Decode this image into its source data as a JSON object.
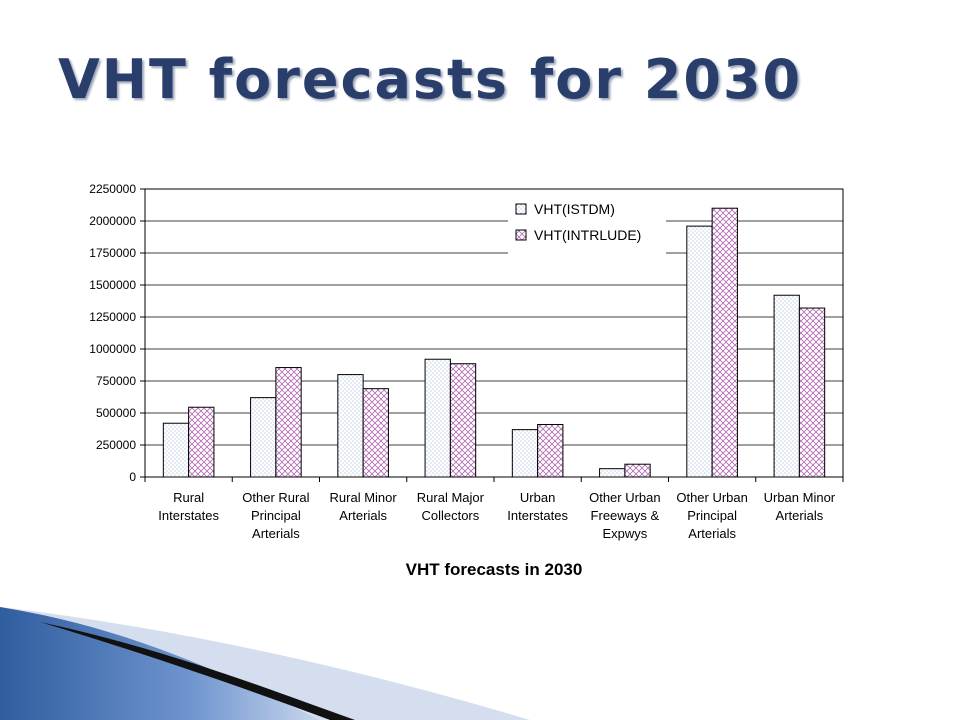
{
  "slide": {
    "title": "VHT forecasts for 2030"
  },
  "colors": {
    "title": "#2a3e6b",
    "bar_fill": "#ffffff",
    "istdm_pattern": "#7f9fcc",
    "intrlude_pattern": "#b06bb0",
    "axis": "#000000",
    "decoration_blue": "#2f5d9e"
  },
  "chart_data": {
    "type": "bar",
    "title": "VHT forecasts in 2030",
    "xlabel": "",
    "ylabel": "",
    "ylim": [
      0,
      2250000
    ],
    "yticks": [
      0,
      250000,
      500000,
      750000,
      1000000,
      1250000,
      1500000,
      1750000,
      2000000,
      2250000
    ],
    "grid": true,
    "legend": "top-right",
    "categories": [
      [
        "Rural",
        "Interstates"
      ],
      [
        "Other Rural",
        "Principal",
        "Arterials"
      ],
      [
        "Rural Minor",
        "Arterials"
      ],
      [
        "Rural Major",
        "Collectors"
      ],
      [
        "Urban",
        "Interstates"
      ],
      [
        "Other Urban",
        "Freeways &",
        "Expwys"
      ],
      [
        "Other Urban",
        "Principal",
        "Arterials"
      ],
      [
        "Urban Minor",
        "Arterials"
      ]
    ],
    "series": [
      {
        "name": "VHT(ISTDM)",
        "values": [
          420000,
          620000,
          800000,
          920000,
          370000,
          65000,
          1960000,
          1420000
        ]
      },
      {
        "name": "VHT(INTRLUDE)",
        "values": [
          545000,
          855000,
          690000,
          885000,
          410000,
          100000,
          2100000,
          1320000
        ]
      }
    ]
  }
}
